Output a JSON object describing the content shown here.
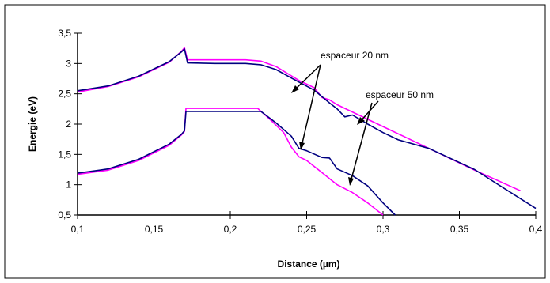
{
  "chart_data": {
    "type": "line",
    "xlabel": "Distance (µm)",
    "ylabel": "Energie (eV)",
    "xlim": [
      0.1,
      0.4
    ],
    "ylim": [
      0.5,
      3.5
    ],
    "x_ticks": [
      "0,1",
      "0,15",
      "0,2",
      "0,25",
      "0,3",
      "0,35",
      "0,4"
    ],
    "y_ticks": [
      "0,5",
      "1",
      "1,5",
      "2",
      "2,5",
      "3",
      "3,5"
    ],
    "grid": false,
    "legend": "none",
    "annotations": [
      {
        "text": "espaceur 20 nm"
      },
      {
        "text": "espaceur 50 nm"
      }
    ],
    "series": [
      {
        "color": "#ff00ff",
        "points": [
          [
            0.1,
            2.53
          ],
          [
            0.12,
            2.62
          ],
          [
            0.14,
            2.78
          ],
          [
            0.16,
            3.02
          ],
          [
            0.168,
            3.2
          ],
          [
            0.17,
            3.26
          ],
          [
            0.172,
            3.06
          ],
          [
            0.19,
            3.06
          ],
          [
            0.21,
            3.06
          ],
          [
            0.22,
            3.04
          ],
          [
            0.23,
            2.95
          ],
          [
            0.245,
            2.72
          ],
          [
            0.25,
            2.66
          ],
          [
            0.255,
            2.6
          ],
          [
            0.26,
            2.44
          ],
          [
            0.265,
            2.4
          ],
          [
            0.27,
            2.32
          ],
          [
            0.3,
            1.96
          ],
          [
            0.33,
            1.6
          ],
          [
            0.36,
            1.24
          ],
          [
            0.39,
            0.9
          ]
        ]
      },
      {
        "color": "#000080",
        "points": [
          [
            0.1,
            2.55
          ],
          [
            0.12,
            2.63
          ],
          [
            0.14,
            2.79
          ],
          [
            0.16,
            3.03
          ],
          [
            0.168,
            3.19
          ],
          [
            0.17,
            3.24
          ],
          [
            0.172,
            3.01
          ],
          [
            0.19,
            3.0
          ],
          [
            0.21,
            3.0
          ],
          [
            0.22,
            2.98
          ],
          [
            0.23,
            2.9
          ],
          [
            0.24,
            2.76
          ],
          [
            0.255,
            2.56
          ],
          [
            0.265,
            2.35
          ],
          [
            0.27,
            2.25
          ],
          [
            0.275,
            2.12
          ],
          [
            0.28,
            2.15
          ],
          [
            0.29,
            2.0
          ],
          [
            0.3,
            1.86
          ],
          [
            0.31,
            1.74
          ],
          [
            0.33,
            1.6
          ],
          [
            0.36,
            1.25
          ],
          [
            0.4,
            0.61
          ]
        ]
      },
      {
        "color": "#ff00ff",
        "points": [
          [
            0.1,
            1.17
          ],
          [
            0.12,
            1.24
          ],
          [
            0.14,
            1.4
          ],
          [
            0.16,
            1.65
          ],
          [
            0.168,
            1.82
          ],
          [
            0.17,
            1.88
          ],
          [
            0.171,
            2.26
          ],
          [
            0.2,
            2.26
          ],
          [
            0.218,
            2.26
          ],
          [
            0.225,
            2.1
          ],
          [
            0.235,
            1.86
          ],
          [
            0.24,
            1.62
          ],
          [
            0.245,
            1.46
          ],
          [
            0.25,
            1.4
          ],
          [
            0.26,
            1.2
          ],
          [
            0.265,
            1.1
          ],
          [
            0.27,
            1.0
          ],
          [
            0.28,
            0.87
          ],
          [
            0.29,
            0.7
          ],
          [
            0.3,
            0.5
          ]
        ]
      },
      {
        "color": "#000080",
        "points": [
          [
            0.1,
            1.19
          ],
          [
            0.12,
            1.26
          ],
          [
            0.14,
            1.42
          ],
          [
            0.16,
            1.67
          ],
          [
            0.168,
            1.83
          ],
          [
            0.17,
            1.89
          ],
          [
            0.171,
            2.21
          ],
          [
            0.2,
            2.21
          ],
          [
            0.22,
            2.21
          ],
          [
            0.23,
            2.02
          ],
          [
            0.24,
            1.8
          ],
          [
            0.245,
            1.6
          ],
          [
            0.25,
            1.56
          ],
          [
            0.26,
            1.45
          ],
          [
            0.265,
            1.44
          ],
          [
            0.27,
            1.26
          ],
          [
            0.28,
            1.15
          ],
          [
            0.29,
            0.98
          ],
          [
            0.3,
            0.7
          ],
          [
            0.308,
            0.5
          ]
        ]
      }
    ]
  }
}
